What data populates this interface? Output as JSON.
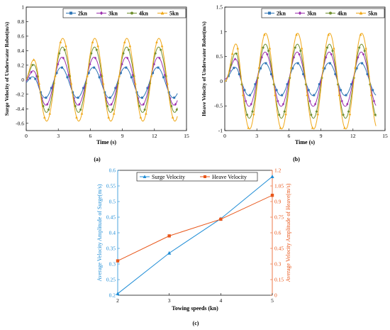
{
  "captions": {
    "a": "(a)",
    "b": "(b)",
    "c": "(c)"
  },
  "chart_data": [
    {
      "id": "a",
      "type": "line",
      "xlabel": "Time (s)",
      "ylabel": "Surge Velocity of Underwater Robot(m/s)",
      "xlim": [
        0,
        15
      ],
      "ylim": [
        -0.7,
        1.0
      ],
      "xticks": [
        "0",
        "3",
        "6",
        "9",
        "12",
        "15"
      ],
      "yticks": [
        "-0.6",
        "-0.4",
        "-0.2",
        "0",
        "0.2",
        "0.4",
        "0.6",
        "0.8",
        "1"
      ],
      "grid": false,
      "legend_position": "top-right",
      "period": 3.0,
      "series": [
        {
          "name": "2kn",
          "color": "#2e75b6",
          "marker": "square",
          "amp": 0.21,
          "offset": -0.04,
          "phase": 1.0
        },
        {
          "name": "3kn",
          "color": "#9b2fae",
          "marker": "diamond",
          "amp": 0.33,
          "offset": -0.02,
          "phase": 0.85
        },
        {
          "name": "4kn",
          "color": "#6f8f2f",
          "marker": "circle",
          "amp": 0.45,
          "offset": 0.0,
          "phase": 0.75
        },
        {
          "name": "5kn",
          "color": "#f0a818",
          "marker": "triangle",
          "amp": 0.57,
          "offset": 0.0,
          "phase": 0.7
        }
      ]
    },
    {
      "id": "b",
      "type": "line",
      "xlabel": "Time (s)",
      "ylabel": "Heave Velocity of Underwater Robot(m/s)",
      "xlim": [
        0,
        15
      ],
      "ylim": [
        -1.0,
        1.5
      ],
      "xticks": [
        "0",
        "3",
        "6",
        "9",
        "12",
        "15"
      ],
      "yticks": [
        "-1",
        "-0.5",
        "0",
        "0.5",
        "1",
        "1.5"
      ],
      "grid": false,
      "legend_position": "top-right",
      "period": 3.0,
      "series": [
        {
          "name": "2kn",
          "color": "#2e75b6",
          "marker": "square",
          "amp": 0.33,
          "offset": 0.04,
          "phase": 0.0
        },
        {
          "name": "3kn",
          "color": "#9b2fae",
          "marker": "diamond",
          "amp": 0.55,
          "offset": 0.04,
          "phase": -0.05
        },
        {
          "name": "4kn",
          "color": "#6f8f2f",
          "marker": "circle",
          "amp": 0.75,
          "offset": 0.0,
          "phase": -0.1
        },
        {
          "name": "5kn",
          "color": "#f0a818",
          "marker": "triangle",
          "amp": 0.97,
          "offset": 0.0,
          "phase": -0.15
        }
      ]
    },
    {
      "id": "c",
      "type": "line",
      "categories": [
        2,
        3,
        4,
        5
      ],
      "xticks": [
        "2",
        "3",
        "4",
        "5"
      ],
      "xlabel": "Towing speeds (kn)",
      "ylabel_left": "Average Velocity Amplitude of Surge(m/s)",
      "ylabel_right": "Average Velocity Amplitude of Heave(m/s)",
      "ylim_left": [
        0.2,
        0.6
      ],
      "ylim_right": [
        0,
        1.2
      ],
      "yticks_left": [
        "0.2",
        "0.25",
        "0.3",
        "0.35",
        "0.4",
        "0.45",
        "0.5",
        "0.55",
        "0.6"
      ],
      "yticks_right": [
        "0",
        "0.15",
        "0.3",
        "0.45",
        "0.6",
        "0.75",
        "0.9",
        "1.05",
        "1.2"
      ],
      "legend_position": "top",
      "left_color": "#1f8dd6",
      "right_color": "#e8561a",
      "series": [
        {
          "name": "Surge Velocity",
          "axis": "left",
          "color": "#1f8dd6",
          "marker": "triangle",
          "values": [
            0.205,
            0.335,
            0.445,
            0.58
          ]
        },
        {
          "name": "Heave Velocity",
          "axis": "right",
          "color": "#e8561a",
          "marker": "square",
          "values": [
            0.33,
            0.57,
            0.73,
            0.96
          ]
        }
      ]
    }
  ]
}
